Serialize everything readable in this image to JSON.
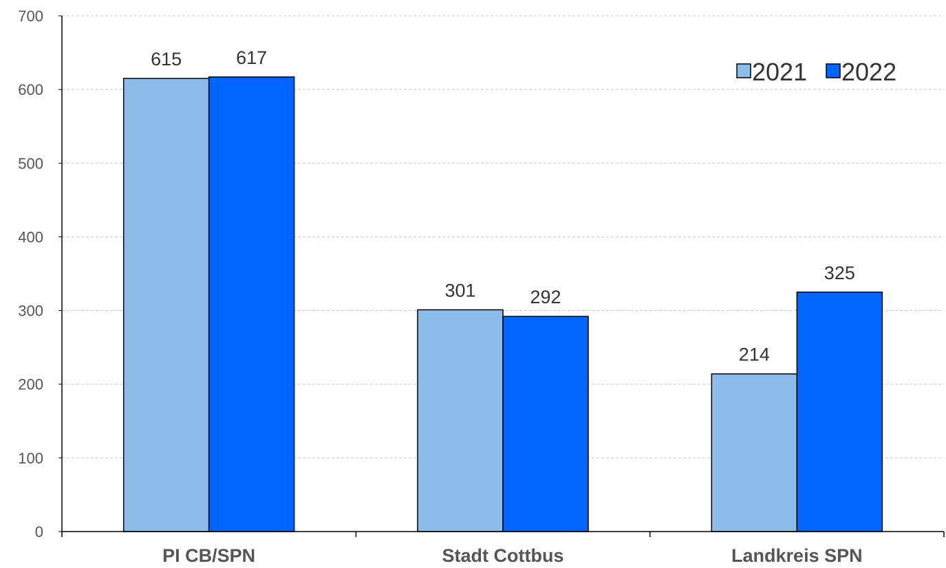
{
  "chart_data": {
    "type": "bar",
    "categories": [
      "PI CB/SPN",
      "Stadt Cottbus",
      "Landkreis SPN"
    ],
    "series": [
      {
        "name": "2021",
        "values": [
          615,
          301,
          214
        ],
        "color": "#8DBBEA"
      },
      {
        "name": "2022",
        "values": [
          617,
          292,
          325
        ],
        "color": "#0064FF"
      }
    ],
    "ylim": [
      0,
      700
    ],
    "yticks": [
      0,
      100,
      200,
      300,
      400,
      500,
      600,
      700
    ],
    "grid": true,
    "legend_position": "top-right",
    "title": "",
    "xlabel": "",
    "ylabel": ""
  }
}
